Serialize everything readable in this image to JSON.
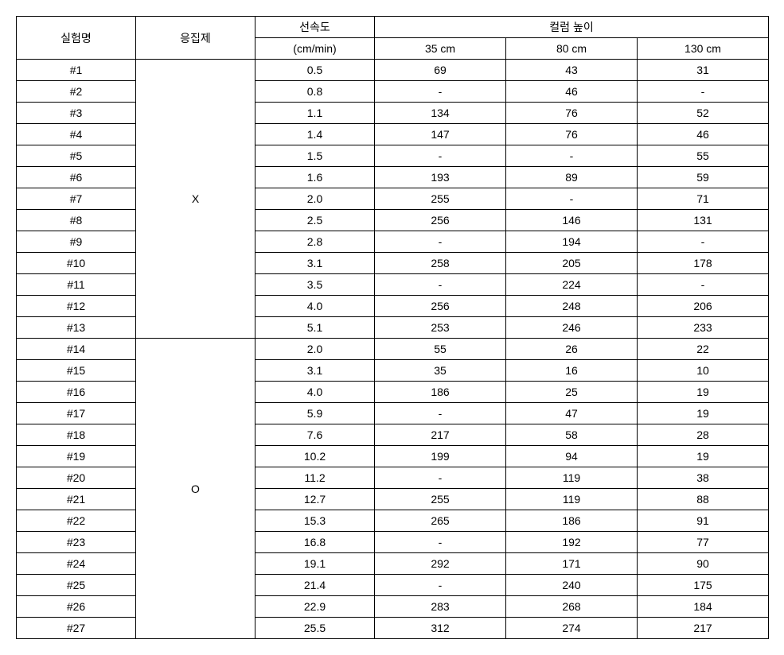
{
  "table": {
    "headers": {
      "experiment": "실험명",
      "coagulant": "응집제",
      "velocity_label": "선속도",
      "velocity_unit": "(cm/min)",
      "column_height_label": "컬럼 높이",
      "h35": "35 cm",
      "h80": "80 cm",
      "h130": "130 cm"
    },
    "groups": [
      {
        "coagulant": "X",
        "rows": [
          {
            "name": "#1",
            "velocity": "0.5",
            "h35": "69",
            "h80": "43",
            "h130": "31"
          },
          {
            "name": "#2",
            "velocity": "0.8",
            "h35": "-",
            "h80": "46",
            "h130": "-"
          },
          {
            "name": "#3",
            "velocity": "1.1",
            "h35": "134",
            "h80": "76",
            "h130": "52"
          },
          {
            "name": "#4",
            "velocity": "1.4",
            "h35": "147",
            "h80": "76",
            "h130": "46"
          },
          {
            "name": "#5",
            "velocity": "1.5",
            "h35": "-",
            "h80": "-",
            "h130": "55"
          },
          {
            "name": "#6",
            "velocity": "1.6",
            "h35": "193",
            "h80": "89",
            "h130": "59"
          },
          {
            "name": "#7",
            "velocity": "2.0",
            "h35": "255",
            "h80": "-",
            "h130": "71"
          },
          {
            "name": "#8",
            "velocity": "2.5",
            "h35": "256",
            "h80": "146",
            "h130": "131"
          },
          {
            "name": "#9",
            "velocity": "2.8",
            "h35": "-",
            "h80": "194",
            "h130": "-"
          },
          {
            "name": "#10",
            "velocity": "3.1",
            "h35": "258",
            "h80": "205",
            "h130": "178"
          },
          {
            "name": "#11",
            "velocity": "3.5",
            "h35": "-",
            "h80": "224",
            "h130": "-"
          },
          {
            "name": "#12",
            "velocity": "4.0",
            "h35": "256",
            "h80": "248",
            "h130": "206"
          },
          {
            "name": "#13",
            "velocity": "5.1",
            "h35": "253",
            "h80": "246",
            "h130": "233"
          }
        ]
      },
      {
        "coagulant": "O",
        "rows": [
          {
            "name": "#14",
            "velocity": "2.0",
            "h35": "55",
            "h80": "26",
            "h130": "22"
          },
          {
            "name": "#15",
            "velocity": "3.1",
            "h35": "35",
            "h80": "16",
            "h130": "10"
          },
          {
            "name": "#16",
            "velocity": "4.0",
            "h35": "186",
            "h80": "25",
            "h130": "19"
          },
          {
            "name": "#17",
            "velocity": "5.9",
            "h35": "-",
            "h80": "47",
            "h130": "19"
          },
          {
            "name": "#18",
            "velocity": "7.6",
            "h35": "217",
            "h80": "58",
            "h130": "28"
          },
          {
            "name": "#19",
            "velocity": "10.2",
            "h35": "199",
            "h80": "94",
            "h130": "19"
          },
          {
            "name": "#20",
            "velocity": "11.2",
            "h35": "-",
            "h80": "119",
            "h130": "38"
          },
          {
            "name": "#21",
            "velocity": "12.7",
            "h35": "255",
            "h80": "119",
            "h130": "88"
          },
          {
            "name": "#22",
            "velocity": "15.3",
            "h35": "265",
            "h80": "186",
            "h130": "91"
          },
          {
            "name": "#23",
            "velocity": "16.8",
            "h35": "-",
            "h80": "192",
            "h130": "77"
          },
          {
            "name": "#24",
            "velocity": "19.1",
            "h35": "292",
            "h80": "171",
            "h130": "90"
          },
          {
            "name": "#25",
            "velocity": "21.4",
            "h35": "-",
            "h80": "240",
            "h130": "175"
          },
          {
            "name": "#26",
            "velocity": "22.9",
            "h35": "283",
            "h80": "268",
            "h130": "184"
          },
          {
            "name": "#27",
            "velocity": "25.5",
            "h35": "312",
            "h80": "274",
            "h130": "217"
          }
        ]
      }
    ]
  }
}
